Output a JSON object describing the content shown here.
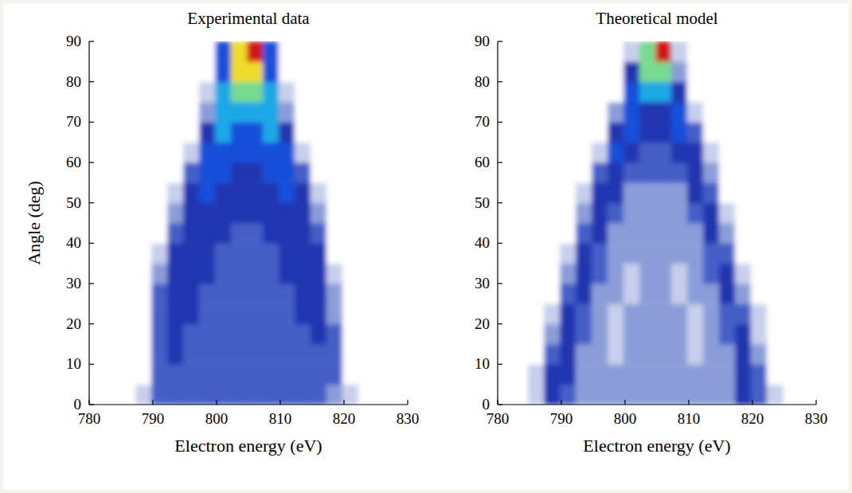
{
  "chart_data": [
    {
      "type": "heatmap",
      "title": "Experimental data",
      "x_label": "Electron energy (eV)",
      "y_label": "Angle (deg)",
      "xlim": [
        780,
        830
      ],
      "ylim": [
        0,
        90
      ],
      "xticks": [
        780,
        790,
        800,
        810,
        820,
        830
      ],
      "yticks": [
        0,
        10,
        20,
        30,
        40,
        50,
        60,
        70,
        80,
        90
      ],
      "zlim": [
        0,
        9
      ],
      "x": [
        786,
        788.5,
        791,
        793.5,
        796,
        798.5,
        801,
        803.5,
        806,
        808.5,
        811,
        813.5,
        816,
        818.5,
        821,
        823.5
      ],
      "y": [
        2.5,
        7.5,
        12.5,
        17.5,
        22.5,
        27.5,
        32.5,
        37.5,
        42.5,
        47.5,
        52.5,
        57.5,
        62.5,
        67.5,
        72.5,
        77.5,
        82.5,
        87.5
      ],
      "cells": [
        [
          0,
          1,
          3,
          3,
          3,
          3,
          3,
          3,
          3,
          3,
          3,
          3,
          3,
          2,
          1,
          0
        ],
        [
          0,
          0,
          3,
          3,
          3,
          3,
          3,
          3,
          3,
          3,
          3,
          3,
          3,
          3,
          0,
          0
        ],
        [
          0,
          0,
          3,
          4,
          3,
          3,
          3,
          3,
          3,
          3,
          3,
          3,
          3,
          3,
          0,
          0
        ],
        [
          0,
          0,
          3,
          4,
          3,
          3,
          3,
          3,
          3,
          3,
          3,
          3,
          4,
          3,
          0,
          0
        ],
        [
          0,
          0,
          3,
          4,
          4,
          3,
          3,
          3,
          3,
          3,
          3,
          4,
          4,
          2,
          0,
          0
        ],
        [
          0,
          0,
          3,
          4,
          4,
          3,
          3,
          3,
          3,
          3,
          3,
          4,
          4,
          2,
          0,
          0
        ],
        [
          0,
          0,
          2,
          4,
          4,
          4,
          3,
          3,
          3,
          3,
          4,
          4,
          4,
          1,
          0,
          0
        ],
        [
          0,
          0,
          1,
          4,
          4,
          4,
          3,
          3,
          3,
          3,
          4,
          4,
          4,
          0,
          0,
          0
        ],
        [
          0,
          0,
          0,
          3,
          4,
          4,
          4,
          3,
          3,
          4,
          4,
          4,
          3,
          0,
          0,
          0
        ],
        [
          0,
          0,
          0,
          2,
          4,
          4,
          4,
          4,
          4,
          4,
          4,
          4,
          2,
          0,
          0,
          0
        ],
        [
          0,
          0,
          0,
          1,
          4,
          5,
          4,
          4,
          4,
          4,
          5,
          4,
          1,
          0,
          0,
          0
        ],
        [
          0,
          0,
          0,
          0,
          3,
          5,
          5,
          4,
          4,
          5,
          5,
          3,
          0,
          0,
          0,
          0
        ],
        [
          0,
          0,
          0,
          0,
          1,
          5,
          5,
          5,
          5,
          5,
          5,
          1,
          0,
          0,
          0,
          0
        ],
        [
          0,
          0,
          0,
          0,
          0,
          4,
          6,
          5,
          5,
          6,
          4,
          0,
          0,
          0,
          0,
          0
        ],
        [
          0,
          0,
          0,
          0,
          0,
          2,
          6,
          6,
          6,
          6,
          2,
          0,
          0,
          0,
          0,
          0
        ],
        [
          0,
          0,
          0,
          0,
          0,
          1,
          6,
          7,
          7,
          6,
          1,
          0,
          0,
          0,
          0,
          0
        ],
        [
          0,
          0,
          0,
          0,
          0,
          0,
          5,
          8,
          8,
          5,
          0,
          0,
          0,
          0,
          0,
          0
        ],
        [
          0,
          0,
          0,
          0,
          0,
          0,
          5,
          8,
          9,
          5,
          0,
          0,
          0,
          0,
          0,
          0
        ]
      ]
    },
    {
      "type": "heatmap",
      "title": "Theoretical model",
      "x_label": "Electron energy (eV)",
      "xlim": [
        780,
        830
      ],
      "ylim": [
        0,
        90
      ],
      "xticks": [
        780,
        790,
        800,
        810,
        820,
        830
      ],
      "yticks": [
        0,
        10,
        20,
        30,
        40,
        50,
        60,
        70,
        80,
        90
      ],
      "zlim": [
        0,
        9
      ],
      "x": [
        786,
        788.5,
        791,
        793.5,
        796,
        798.5,
        801,
        803.5,
        806,
        808.5,
        811,
        813.5,
        816,
        818.5,
        821,
        823.5
      ],
      "y": [
        2.5,
        7.5,
        12.5,
        17.5,
        22.5,
        27.5,
        32.5,
        37.5,
        42.5,
        47.5,
        52.5,
        57.5,
        62.5,
        67.5,
        72.5,
        77.5,
        82.5,
        87.5
      ],
      "cells": [
        [
          1,
          4,
          3,
          2,
          2,
          2,
          2,
          2,
          2,
          2,
          2,
          2,
          2,
          4,
          3,
          1
        ],
        [
          1,
          4,
          4,
          2,
          2,
          2,
          2,
          2,
          2,
          2,
          2,
          2,
          2,
          4,
          3,
          0
        ],
        [
          0,
          3,
          4,
          2,
          2,
          1,
          2,
          2,
          2,
          2,
          1,
          2,
          2,
          4,
          2,
          0
        ],
        [
          0,
          2,
          4,
          3,
          2,
          1,
          2,
          2,
          2,
          2,
          1,
          2,
          3,
          4,
          1,
          0
        ],
        [
          0,
          1,
          4,
          3,
          2,
          1,
          2,
          2,
          2,
          2,
          1,
          2,
          3,
          3,
          1,
          0
        ],
        [
          0,
          0,
          3,
          4,
          2,
          2,
          1,
          2,
          2,
          1,
          2,
          2,
          4,
          2,
          0,
          0
        ],
        [
          0,
          0,
          2,
          4,
          3,
          2,
          1,
          2,
          2,
          1,
          2,
          3,
          4,
          1,
          0,
          0
        ],
        [
          0,
          0,
          1,
          4,
          3,
          2,
          2,
          2,
          2,
          2,
          2,
          3,
          3,
          0,
          0,
          0
        ],
        [
          0,
          0,
          0,
          3,
          4,
          2,
          2,
          2,
          2,
          2,
          2,
          4,
          2,
          0,
          0,
          0
        ],
        [
          0,
          0,
          0,
          2,
          4,
          3,
          2,
          2,
          2,
          2,
          3,
          4,
          1,
          0,
          0,
          0
        ],
        [
          0,
          0,
          0,
          1,
          4,
          4,
          2,
          2,
          2,
          2,
          4,
          3,
          0,
          0,
          0,
          0
        ],
        [
          0,
          0,
          0,
          0,
          3,
          4,
          3,
          3,
          3,
          3,
          4,
          2,
          0,
          0,
          0,
          0
        ],
        [
          0,
          0,
          0,
          0,
          1,
          5,
          4,
          3,
          3,
          4,
          4,
          1,
          0,
          0,
          0,
          0
        ],
        [
          0,
          0,
          0,
          0,
          0,
          4,
          5,
          4,
          4,
          5,
          3,
          0,
          0,
          0,
          0,
          0
        ],
        [
          0,
          0,
          0,
          0,
          0,
          2,
          5,
          4,
          4,
          5,
          1,
          0,
          0,
          0,
          0,
          0
        ],
        [
          0,
          0,
          0,
          0,
          0,
          0,
          5,
          6,
          6,
          4,
          0,
          0,
          0,
          0,
          0,
          0
        ],
        [
          0,
          0,
          0,
          0,
          0,
          0,
          4,
          7,
          7,
          2,
          0,
          0,
          0,
          0,
          0,
          0
        ],
        [
          0,
          0,
          0,
          0,
          0,
          0,
          1,
          7,
          9,
          1,
          0,
          0,
          0,
          0,
          0,
          0
        ]
      ]
    }
  ]
}
